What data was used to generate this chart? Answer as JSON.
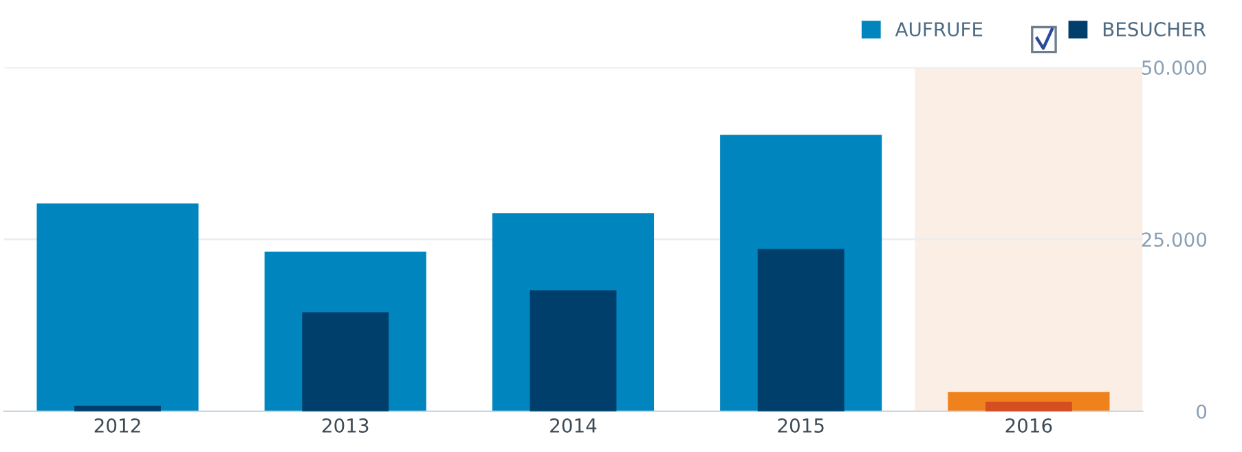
{
  "chart_data": {
    "type": "bar",
    "categories": [
      "2012",
      "2013",
      "2014",
      "2015",
      "2016"
    ],
    "series": [
      {
        "name": "AUFRUFE",
        "color": "#0085be",
        "colors": [
          "#0085be",
          "#0085be",
          "#0085be",
          "#0085be",
          "#f0821e"
        ],
        "values": [
          30200,
          23200,
          28800,
          40200,
          2800
        ]
      },
      {
        "name": "BESUCHER",
        "color": "#003f6b",
        "colors": [
          "#003f6b",
          "#003f6b",
          "#003f6b",
          "#003f6b",
          "#d54e21"
        ],
        "values": [
          800,
          14400,
          17600,
          23600,
          1400
        ]
      }
    ],
    "ylim": [
      0,
      50000
    ],
    "yticks": [
      {
        "value": 0,
        "label": "0"
      },
      {
        "value": 25000,
        "label": "25.000"
      },
      {
        "value": 50000,
        "label": "50.000"
      }
    ],
    "bands": [
      {
        "axis": "x",
        "from": "2016",
        "to": "2016",
        "color": "#fbefe5"
      }
    ],
    "grid": "y",
    "legend": "top right"
  }
}
